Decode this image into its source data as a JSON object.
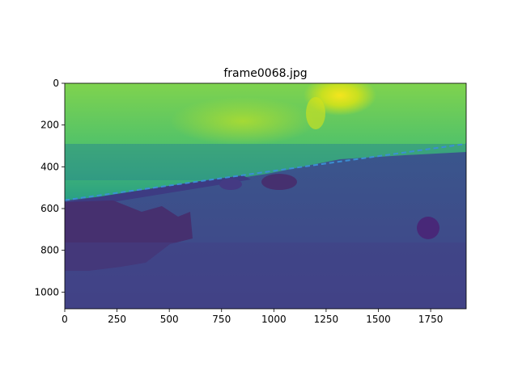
{
  "chart_data": {
    "type": "heatmap",
    "title": "frame0068.jpg",
    "xlabel": "",
    "ylabel": "",
    "colormap": "viridis",
    "image_width": 1920,
    "image_height": 1080,
    "xlim": [
      0,
      1920
    ],
    "ylim": [
      1080,
      0
    ],
    "x_ticks": [
      {
        "value": 0,
        "label": "0"
      },
      {
        "value": 250,
        "label": "250"
      },
      {
        "value": 500,
        "label": "500"
      },
      {
        "value": 750,
        "label": "750"
      },
      {
        "value": 1000,
        "label": "1000"
      },
      {
        "value": 1250,
        "label": "1250"
      },
      {
        "value": 1500,
        "label": "1500"
      },
      {
        "value": 1750,
        "label": "1750"
      }
    ],
    "y_ticks": [
      {
        "value": 0,
        "label": "0"
      },
      {
        "value": 200,
        "label": "200"
      },
      {
        "value": 400,
        "label": "400"
      },
      {
        "value": 600,
        "label": "600"
      },
      {
        "value": 800,
        "label": "800"
      },
      {
        "value": 1000,
        "label": "1000"
      }
    ],
    "horizon_line": {
      "style": "dashed",
      "color": "#3b8fd4",
      "points": [
        [
          0,
          560
        ],
        [
          1920,
          290
        ]
      ]
    },
    "grid": false,
    "legend": "none"
  }
}
